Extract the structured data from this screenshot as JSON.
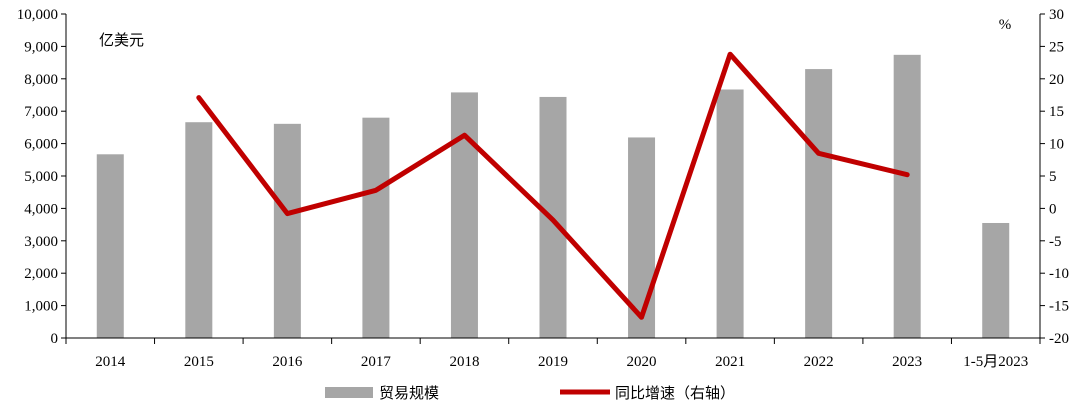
{
  "chart_data": {
    "type": "bar+line",
    "categories": [
      "2014",
      "2015",
      "2016",
      "2017",
      "2018",
      "2019",
      "2020",
      "2021",
      "2022",
      "2023",
      "1-5月2023"
    ],
    "series": [
      {
        "name": "贸易规模",
        "type": "bar",
        "axis": "left",
        "color": "#a6a6a6",
        "values": [
          5670,
          6660,
          6610,
          6800,
          7580,
          7440,
          6190,
          7670,
          8300,
          8740,
          3550
        ]
      },
      {
        "name": "同比增速（右轴）",
        "type": "line",
        "axis": "right",
        "color": "#c00000",
        "values": [
          null,
          17.1,
          -0.8,
          2.8,
          11.3,
          -1.8,
          -16.8,
          23.8,
          8.5,
          5.2,
          null
        ]
      }
    ],
    "left_axis": {
      "unit": "亿美元",
      "min": 0,
      "max": 10000,
      "step": 1000,
      "tick_labels": [
        "0",
        "1,000",
        "2,000",
        "3,000",
        "4,000",
        "5,000",
        "6,000",
        "7,000",
        "8,000",
        "9,000",
        "10,000"
      ]
    },
    "right_axis": {
      "unit": "%",
      "min": -20,
      "max": 30,
      "step": 5,
      "tick_labels": [
        "-20",
        "-15",
        "-10",
        "-5",
        "0",
        "5",
        "10",
        "15",
        "20",
        "25",
        "30"
      ]
    },
    "legend_position": "bottom",
    "grid": false
  }
}
